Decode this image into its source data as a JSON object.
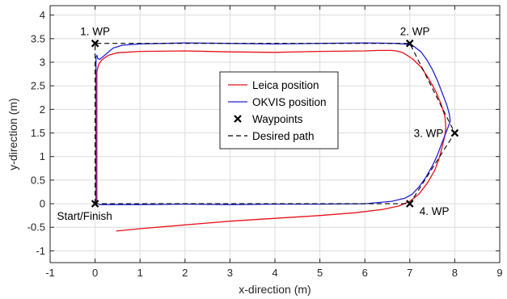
{
  "chart_data": {
    "type": "line",
    "title": "",
    "xlabel": "x-direction (m)",
    "ylabel": "y-direction (m)",
    "xlim": [
      -1,
      9
    ],
    "ylim": [
      -1.25,
      4.2
    ],
    "xticks": [
      -1,
      0,
      1,
      2,
      3,
      4,
      5,
      6,
      7,
      8,
      9
    ],
    "yticks": [
      -1,
      -0.5,
      0,
      0.5,
      1,
      1.5,
      2,
      2.5,
      3,
      3.5,
      4
    ],
    "grid": true,
    "legend": {
      "placement": "center",
      "entries": [
        "Leica position",
        "OKVIS position",
        "Waypoints",
        "Desired path"
      ]
    },
    "series": [
      {
        "name": "Leica position",
        "color": "#e8101a",
        "style": "solid",
        "x": [
          0.47,
          1.0,
          2.0,
          3.0,
          4.0,
          5.0,
          5.8,
          6.4,
          6.75,
          7.0,
          7.2,
          7.4,
          7.55,
          7.65,
          7.72,
          7.78,
          7.8,
          7.78,
          7.7,
          7.58,
          7.42,
          7.25,
          7.05,
          6.85,
          6.7,
          6.6,
          6.55,
          6.3,
          6.0,
          5.0,
          4.0,
          3.0,
          2.0,
          1.0,
          0.5,
          0.3,
          0.15,
          0.08,
          0.05,
          0.04,
          0.04,
          0.04
        ],
        "y": [
          -0.58,
          -0.53,
          -0.45,
          -0.37,
          -0.31,
          -0.25,
          -0.19,
          -0.12,
          -0.05,
          0.05,
          0.2,
          0.45,
          0.7,
          0.95,
          1.2,
          1.45,
          1.62,
          1.85,
          2.1,
          2.38,
          2.65,
          2.9,
          3.08,
          3.2,
          3.24,
          3.25,
          3.25,
          3.25,
          3.24,
          3.23,
          3.21,
          3.22,
          3.24,
          3.23,
          3.2,
          3.15,
          3.05,
          2.95,
          2.85,
          2.78,
          2.0,
          0.0
        ]
      },
      {
        "name": "OKVIS position",
        "color": "#2222d8",
        "style": "solid",
        "x": [
          0.08,
          0.5,
          1.0,
          2.0,
          3.0,
          4.0,
          5.0,
          6.0,
          6.6,
          6.9,
          7.05,
          7.2,
          7.35,
          7.5,
          7.6,
          7.7,
          7.78,
          7.85,
          7.9,
          7.88,
          7.82,
          7.72,
          7.62,
          7.5,
          7.38,
          7.25,
          7.1,
          6.95,
          6.7,
          6.0,
          5.0,
          4.0,
          3.0,
          2.0,
          1.0,
          0.6,
          0.4,
          0.3,
          0.18,
          0.1,
          0.06,
          0.04,
          0.02,
          0.02,
          0.02
        ],
        "y": [
          -0.02,
          -0.02,
          -0.02,
          -0.01,
          -0.02,
          -0.01,
          -0.01,
          0.0,
          0.05,
          0.12,
          0.2,
          0.35,
          0.55,
          0.8,
          1.0,
          1.25,
          1.45,
          1.62,
          1.75,
          1.9,
          2.1,
          2.35,
          2.6,
          2.85,
          3.05,
          3.22,
          3.33,
          3.38,
          3.4,
          3.41,
          3.4,
          3.39,
          3.4,
          3.41,
          3.39,
          3.36,
          3.3,
          3.22,
          3.12,
          3.06,
          3.08,
          3.15,
          3.1,
          2.0,
          0.0
        ]
      },
      {
        "name": "Desired path",
        "color": "#000000",
        "style": "dashed",
        "x": [
          0,
          0,
          7,
          8,
          7,
          0
        ],
        "y": [
          0,
          3.4,
          3.4,
          1.5,
          0,
          0
        ]
      },
      {
        "name": "Waypoints",
        "color": "#000000",
        "style": "marker-x",
        "x": [
          0,
          0,
          7,
          8,
          7
        ],
        "y": [
          0,
          3.4,
          3.4,
          1.5,
          0
        ]
      }
    ],
    "annotations": [
      {
        "text": "1. WP",
        "x": 0,
        "y": 3.4,
        "anchor": "above"
      },
      {
        "text": "2. WP",
        "x": 7,
        "y": 3.4,
        "anchor": "above-right"
      },
      {
        "text": "3. WP",
        "x": 8,
        "y": 1.5,
        "anchor": "left"
      },
      {
        "text": "4. WP",
        "x": 7,
        "y": 0,
        "anchor": "below-right"
      },
      {
        "text": "Start/Finish",
        "x": 0,
        "y": 0,
        "anchor": "below"
      }
    ]
  }
}
